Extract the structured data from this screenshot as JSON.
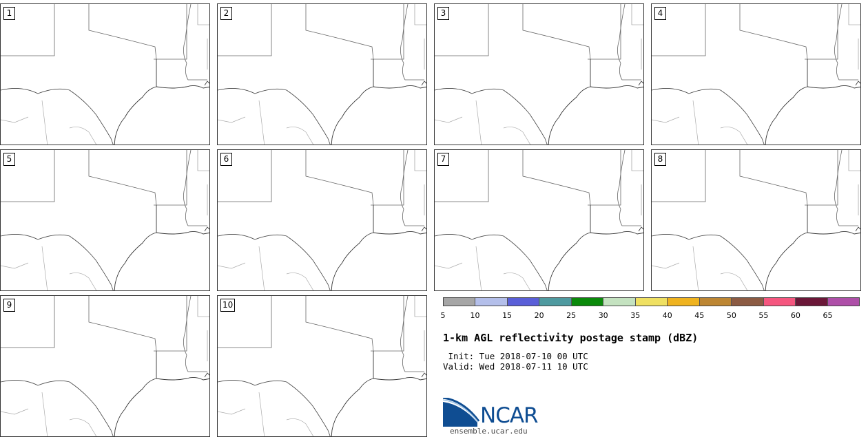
{
  "panels": [
    {
      "label": "1"
    },
    {
      "label": "2"
    },
    {
      "label": "3"
    },
    {
      "label": "4"
    },
    {
      "label": "5"
    },
    {
      "label": "6"
    },
    {
      "label": "7"
    },
    {
      "label": "8"
    },
    {
      "label": "9"
    },
    {
      "label": "10"
    }
  ],
  "colorbar": {
    "colors": [
      "#a6a6a6",
      "#b4bfea",
      "#5a5fd8",
      "#4f9aa0",
      "#0b8a0b",
      "#c4e2c0",
      "#efe062",
      "#efb31f",
      "#bd8633",
      "#8c5b43",
      "#f5567f",
      "#6b1738",
      "#ae4fa8"
    ],
    "ticks": [
      "5",
      "10",
      "15",
      "20",
      "25",
      "30",
      "35",
      "40",
      "45",
      "50",
      "55",
      "60",
      "65"
    ]
  },
  "title": "1-km AGL reflectivity postage stamp (dBZ)",
  "init_line": " Init: Tue 2018-07-10 00 UTC",
  "valid_line": "Valid: Wed 2018-07-11 10 UTC",
  "logo_text": "NCAR",
  "site": "ensemble.ucar.edu"
}
